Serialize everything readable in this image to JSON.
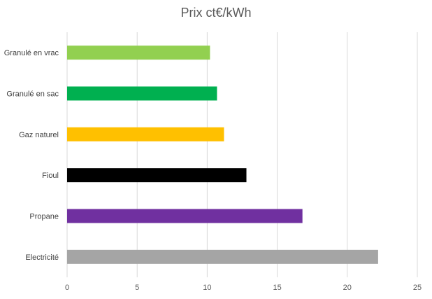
{
  "chart_data": {
    "type": "bar",
    "orientation": "horizontal",
    "title": "Prix ct€/kWh",
    "xlabel": "",
    "ylabel": "",
    "categories": [
      "Granulé en vrac",
      "Granulé en sac",
      "Gaz naturel",
      "Fioul",
      "Propane",
      "Electricité"
    ],
    "values": [
      10.2,
      10.7,
      11.2,
      12.8,
      16.8,
      22.2
    ],
    "colors": [
      "#92d050",
      "#00b050",
      "#ffc000",
      "#000000",
      "#7030a0",
      "#a5a5a5"
    ],
    "xlim": [
      0,
      25
    ],
    "xticks": [
      0,
      5,
      10,
      15,
      20,
      25
    ],
    "grid": true,
    "legend": "none"
  }
}
